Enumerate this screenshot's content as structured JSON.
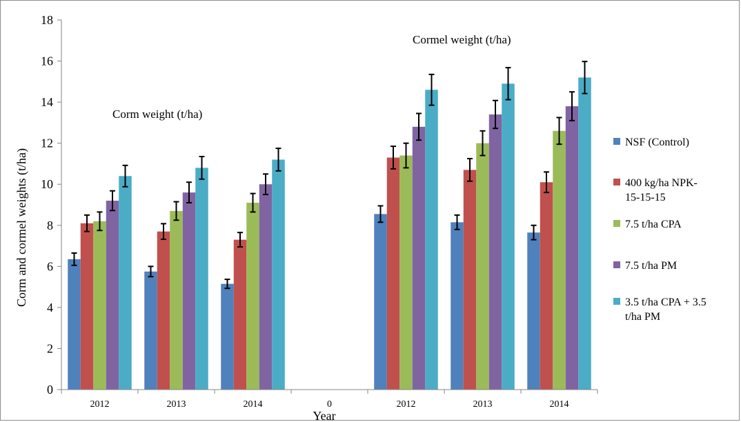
{
  "chart_data": {
    "type": "bar",
    "xlabel": "Year",
    "ylabel": "Corm and cormel weights  (t/ha)",
    "ylim": [
      0,
      18
    ],
    "yticks": [
      0,
      2,
      4,
      6,
      8,
      10,
      12,
      14,
      16,
      18
    ],
    "grid": false,
    "legend_position": "right",
    "categories": [
      "2012",
      "2013",
      "2014",
      "0",
      "2012",
      "2013",
      "2014"
    ],
    "annotations": [
      "Corm weight  (t/ha)",
      "Cormel weight  (t/ha)"
    ],
    "series": [
      {
        "name": "NSF (Control)",
        "color": "#4f81bd",
        "values": [
          6.35,
          5.75,
          5.15,
          0,
          8.55,
          8.15,
          7.65
        ],
        "errors": [
          0.3,
          0.25,
          0.22,
          0,
          0.4,
          0.35,
          0.35
        ]
      },
      {
        "name": "400 kg/ha NPK-15-15-15",
        "label_lines": [
          "400 kg/ha NPK-",
          "15-15-15"
        ],
        "color": "#c0504d",
        "values": [
          8.1,
          7.7,
          7.3,
          0,
          11.3,
          10.7,
          10.1
        ],
        "errors": [
          0.4,
          0.38,
          0.35,
          0,
          0.55,
          0.55,
          0.5
        ]
      },
      {
        "name": "7.5 t/ha CPA",
        "color": "#9bbb59",
        "values": [
          8.2,
          8.7,
          9.1,
          0,
          11.4,
          12.0,
          12.6
        ],
        "errors": [
          0.45,
          0.45,
          0.45,
          0,
          0.6,
          0.6,
          0.65
        ]
      },
      {
        "name": "7.5 t/ha PM",
        "color": "#8064a2",
        "values": [
          9.2,
          9.6,
          10.0,
          0,
          12.8,
          13.4,
          13.8
        ],
        "errors": [
          0.48,
          0.5,
          0.5,
          0,
          0.65,
          0.68,
          0.7
        ]
      },
      {
        "name": "3.5 t/ha CPA + 3.5 t/ha PM",
        "label_lines": [
          "3.5 t/ha CPA + 3.5",
          "t/ha PM"
        ],
        "color": "#4bacc6",
        "values": [
          10.4,
          10.8,
          11.2,
          0,
          14.6,
          14.9,
          15.2
        ],
        "errors": [
          0.52,
          0.55,
          0.55,
          0,
          0.75,
          0.78,
          0.78
        ]
      }
    ]
  }
}
